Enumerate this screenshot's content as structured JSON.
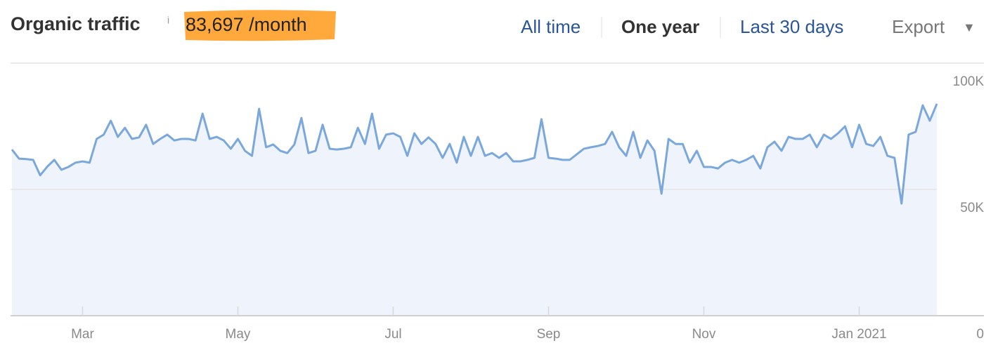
{
  "header": {
    "title": "Organic traffic",
    "info": "i",
    "value": "83,697 /month"
  },
  "tabs": [
    "All time",
    "One year",
    "Last 30 days"
  ],
  "active_tab": 1,
  "export": {
    "label": "Export",
    "icon": "▼"
  },
  "chart_data": {
    "type": "line",
    "categories": [
      null,
      null,
      null,
      null,
      null,
      null,
      null,
      null,
      null,
      null,
      "Mar",
      null,
      null,
      null,
      null,
      null,
      null,
      null,
      null,
      null,
      null,
      null,
      null,
      null,
      null,
      null,
      null,
      null,
      null,
      null,
      null,
      null,
      "May",
      null,
      null,
      null,
      null,
      null,
      null,
      null,
      null,
      null,
      null,
      null,
      null,
      null,
      null,
      null,
      null,
      null,
      null,
      null,
      null,
      null,
      "Jul",
      null,
      null,
      null,
      null,
      null,
      null,
      null,
      null,
      null,
      null,
      null,
      null,
      null,
      null,
      null,
      null,
      null,
      null,
      null,
      null,
      null,
      "Sep",
      null,
      null,
      null,
      null,
      null,
      null,
      null,
      null,
      null,
      null,
      null,
      null,
      null,
      null,
      null,
      null,
      null,
      null,
      null,
      null,
      null,
      "Nov",
      null,
      null,
      null,
      null,
      null,
      null,
      null,
      null,
      null,
      null,
      null,
      null,
      null,
      null,
      null,
      null,
      null,
      null,
      null,
      null,
      null,
      "Jan 2021",
      null,
      null,
      null,
      null,
      null,
      null,
      null,
      null,
      null,
      null,
      null
    ],
    "values": [
      65800,
      62200,
      62000,
      61700,
      55600,
      59000,
      61700,
      57800,
      58900,
      60600,
      61100,
      60600,
      70000,
      71700,
      77200,
      70800,
      74400,
      70000,
      70600,
      75600,
      68000,
      70000,
      71700,
      69400,
      70000,
      70000,
      69400,
      80000,
      70000,
      70800,
      69400,
      66100,
      70000,
      65300,
      63300,
      81900,
      66700,
      67800,
      65300,
      64400,
      67800,
      78300,
      64400,
      65300,
      75600,
      66100,
      65800,
      66100,
      66700,
      74400,
      68000,
      80000,
      66100,
      71700,
      72200,
      70800,
      63300,
      72200,
      68000,
      70600,
      68000,
      62500,
      68000,
      60600,
      70800,
      63300,
      70800,
      63300,
      64400,
      62500,
      64400,
      61100,
      61100,
      61700,
      62500,
      77800,
      62500,
      62200,
      61700,
      61700,
      63900,
      66100,
      66700,
      67200,
      68000,
      72800,
      66700,
      63300,
      72800,
      62500,
      69400,
      65300,
      48300,
      70000,
      68000,
      68000,
      60600,
      65300,
      58900,
      58900,
      58300,
      60600,
      61700,
      60600,
      61700,
      63300,
      58300,
      66700,
      68900,
      65300,
      70800,
      70000,
      70000,
      71700,
      66700,
      71700,
      70000,
      72200,
      75000,
      66700,
      75600,
      68000,
      67200,
      70800,
      63300,
      62500,
      44400,
      71700,
      72800,
      83300,
      77200,
      83900
    ],
    "color": "#7aa7dc",
    "ylim": [
      0,
      100000
    ],
    "yticks": [
      0,
      {
        "value": 50000,
        "label": "50K"
      },
      {
        "value": 100000,
        "label": "100K"
      }
    ],
    "grid": true
  }
}
